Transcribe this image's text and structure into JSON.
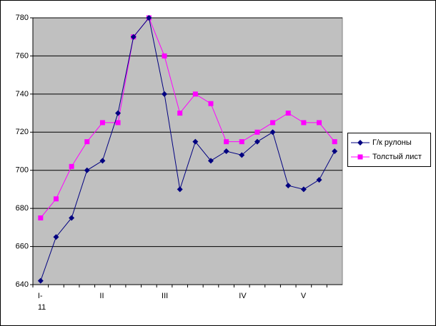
{
  "chart_data": {
    "type": "line",
    "categories": [
      "I-11",
      null,
      null,
      null,
      "II",
      null,
      null,
      null,
      "III",
      null,
      null,
      null,
      null,
      "IV",
      null,
      null,
      null,
      "V",
      null,
      null
    ],
    "series": [
      {
        "name": "Г/к рулоны",
        "color": "#000080",
        "marker": "diamond",
        "values": [
          642,
          665,
          675,
          700,
          705,
          730,
          770,
          780,
          740,
          690,
          715,
          705,
          710,
          708,
          715,
          720,
          692,
          690,
          695,
          710
        ]
      },
      {
        "name": "Толстый лист",
        "color": "#ff00ff",
        "marker": "square",
        "values": [
          675,
          685,
          702,
          715,
          725,
          725,
          770,
          780,
          760,
          730,
          740,
          735,
          715,
          715,
          720,
          725,
          730,
          725,
          725,
          715
        ]
      }
    ],
    "ylim": [
      640,
      780
    ],
    "yticks": [
      640,
      660,
      680,
      700,
      720,
      740,
      760,
      780
    ],
    "grid": true,
    "legend": "right"
  }
}
